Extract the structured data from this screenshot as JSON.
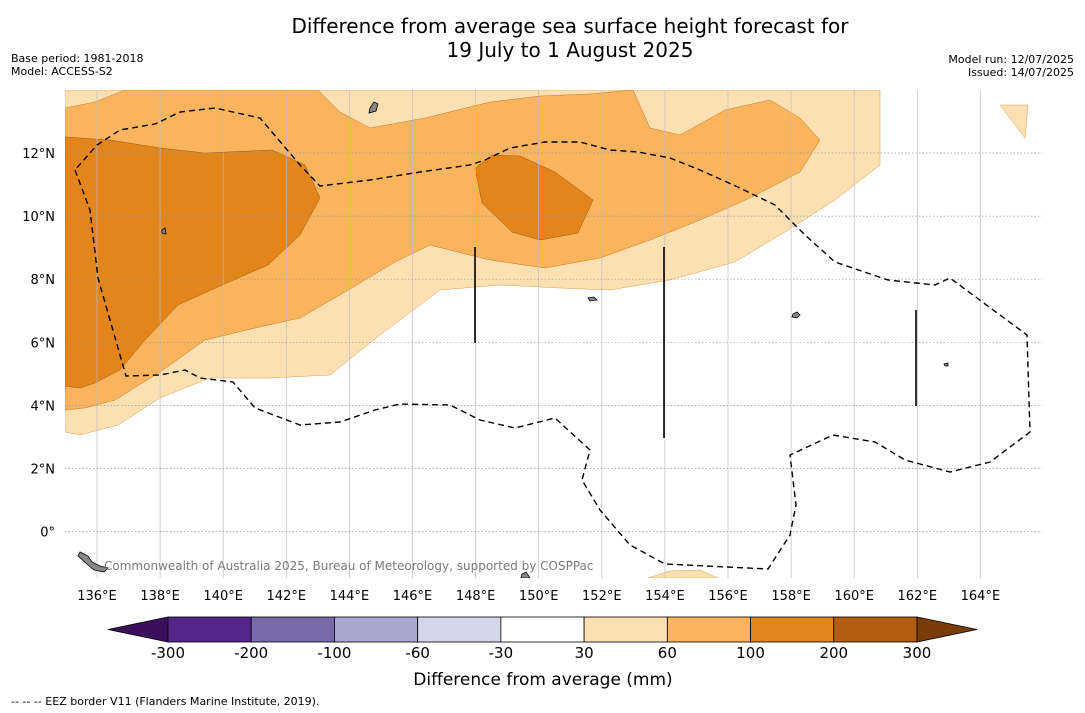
{
  "chart_data": {
    "type": "map",
    "title_line1": "Difference from average sea surface height forecast for",
    "title_line2": "19 July to 1 August 2025",
    "base_period": "Base period: 1981-2018",
    "model": "Model: ACCESS-S2",
    "model_run": "Model run: 12/07/2025",
    "issued": "Issued: 14/07/2025",
    "credit": "Commonwealth of Australia 2025, Bureau of Meteorology, supported by COSPPac",
    "footnote": "--  --  -- EEZ border V11 (Flanders Marine Institute, 2019).",
    "x_ticks": [
      "136°E",
      "138°E",
      "140°E",
      "142°E",
      "144°E",
      "146°E",
      "148°E",
      "150°E",
      "152°E",
      "154°E",
      "156°E",
      "158°E",
      "160°E",
      "162°E",
      "164°E"
    ],
    "y_ticks": [
      "12°N",
      "10°N",
      "8°N",
      "6°N",
      "4°N",
      "2°N",
      "0°"
    ],
    "colorbar": {
      "title": "Difference from average (mm)",
      "labels": [
        "-300",
        "-200",
        "-100",
        "-60",
        "-30",
        "30",
        "60",
        "100",
        "200",
        "300"
      ],
      "colors": [
        "#3c0f5c",
        "#55268a",
        "#7b6aab",
        "#aba6cf",
        "#d5d5ea",
        "#ffffff",
        "#fde0b2",
        "#f9b45d",
        "#e3851b",
        "#b35d0f",
        "#7a3c05"
      ]
    }
  }
}
